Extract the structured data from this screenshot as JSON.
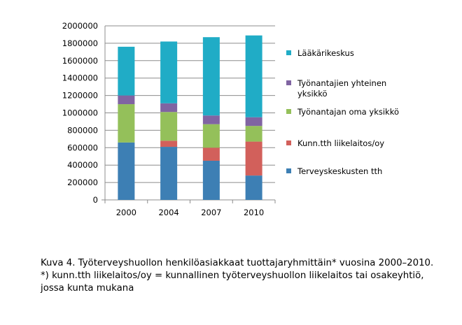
{
  "chart_data": {
    "type": "bar",
    "stacked": true,
    "categories": [
      "2000",
      "2004",
      "2007",
      "2010"
    ],
    "series": [
      {
        "name": "Terveyskeskusten tth",
        "color": "#3d7fb4",
        "values": [
          660000,
          610000,
          450000,
          280000
        ]
      },
      {
        "name": "Kunn.tth liikelaitos/oy",
        "color": "#d2605b",
        "values": [
          0,
          70000,
          150000,
          390000
        ]
      },
      {
        "name": "Työnantajan oma yksikkö",
        "color": "#94c05a",
        "values": [
          440000,
          330000,
          270000,
          180000
        ]
      },
      {
        "name": "Työnantajien yhteinen yksikkö",
        "color": "#8064a2",
        "values": [
          100000,
          100000,
          100000,
          100000
        ]
      },
      {
        "name": "Lääkärikeskus",
        "color": "#20acc6",
        "values": [
          560000,
          710000,
          900000,
          940000
        ]
      }
    ],
    "legend_order": [
      4,
      3,
      2,
      1,
      0
    ],
    "legend_lines": [
      [
        "Lääkärikeskus"
      ],
      [
        "Työnantajien yhteinen",
        "yksikkö"
      ],
      [
        "Työnantajan oma yksikkö"
      ],
      [
        "Kunn.tth liikelaitos/oy"
      ],
      [
        "Terveyskeskusten tth"
      ]
    ],
    "yticks": [
      "0",
      "200000",
      "400000",
      "600000",
      "800000",
      "1000000",
      "1200000",
      "1400000",
      "1600000",
      "1800000",
      "2000000"
    ],
    "ylim": [
      0,
      2000000
    ],
    "grid": true,
    "legend_position": "right"
  },
  "caption": {
    "line1": "Kuva 4. Työterveyshuollon henkilöasiakkaat tuottajaryhmittäin* vuosina 2000–2010.",
    "line2": "*) kunn.tth liikelaitos/oy = kunnallinen työterveyshuollon liikelaitos tai osakeyhtiö,",
    "line3": "jossa kunta mukana"
  }
}
